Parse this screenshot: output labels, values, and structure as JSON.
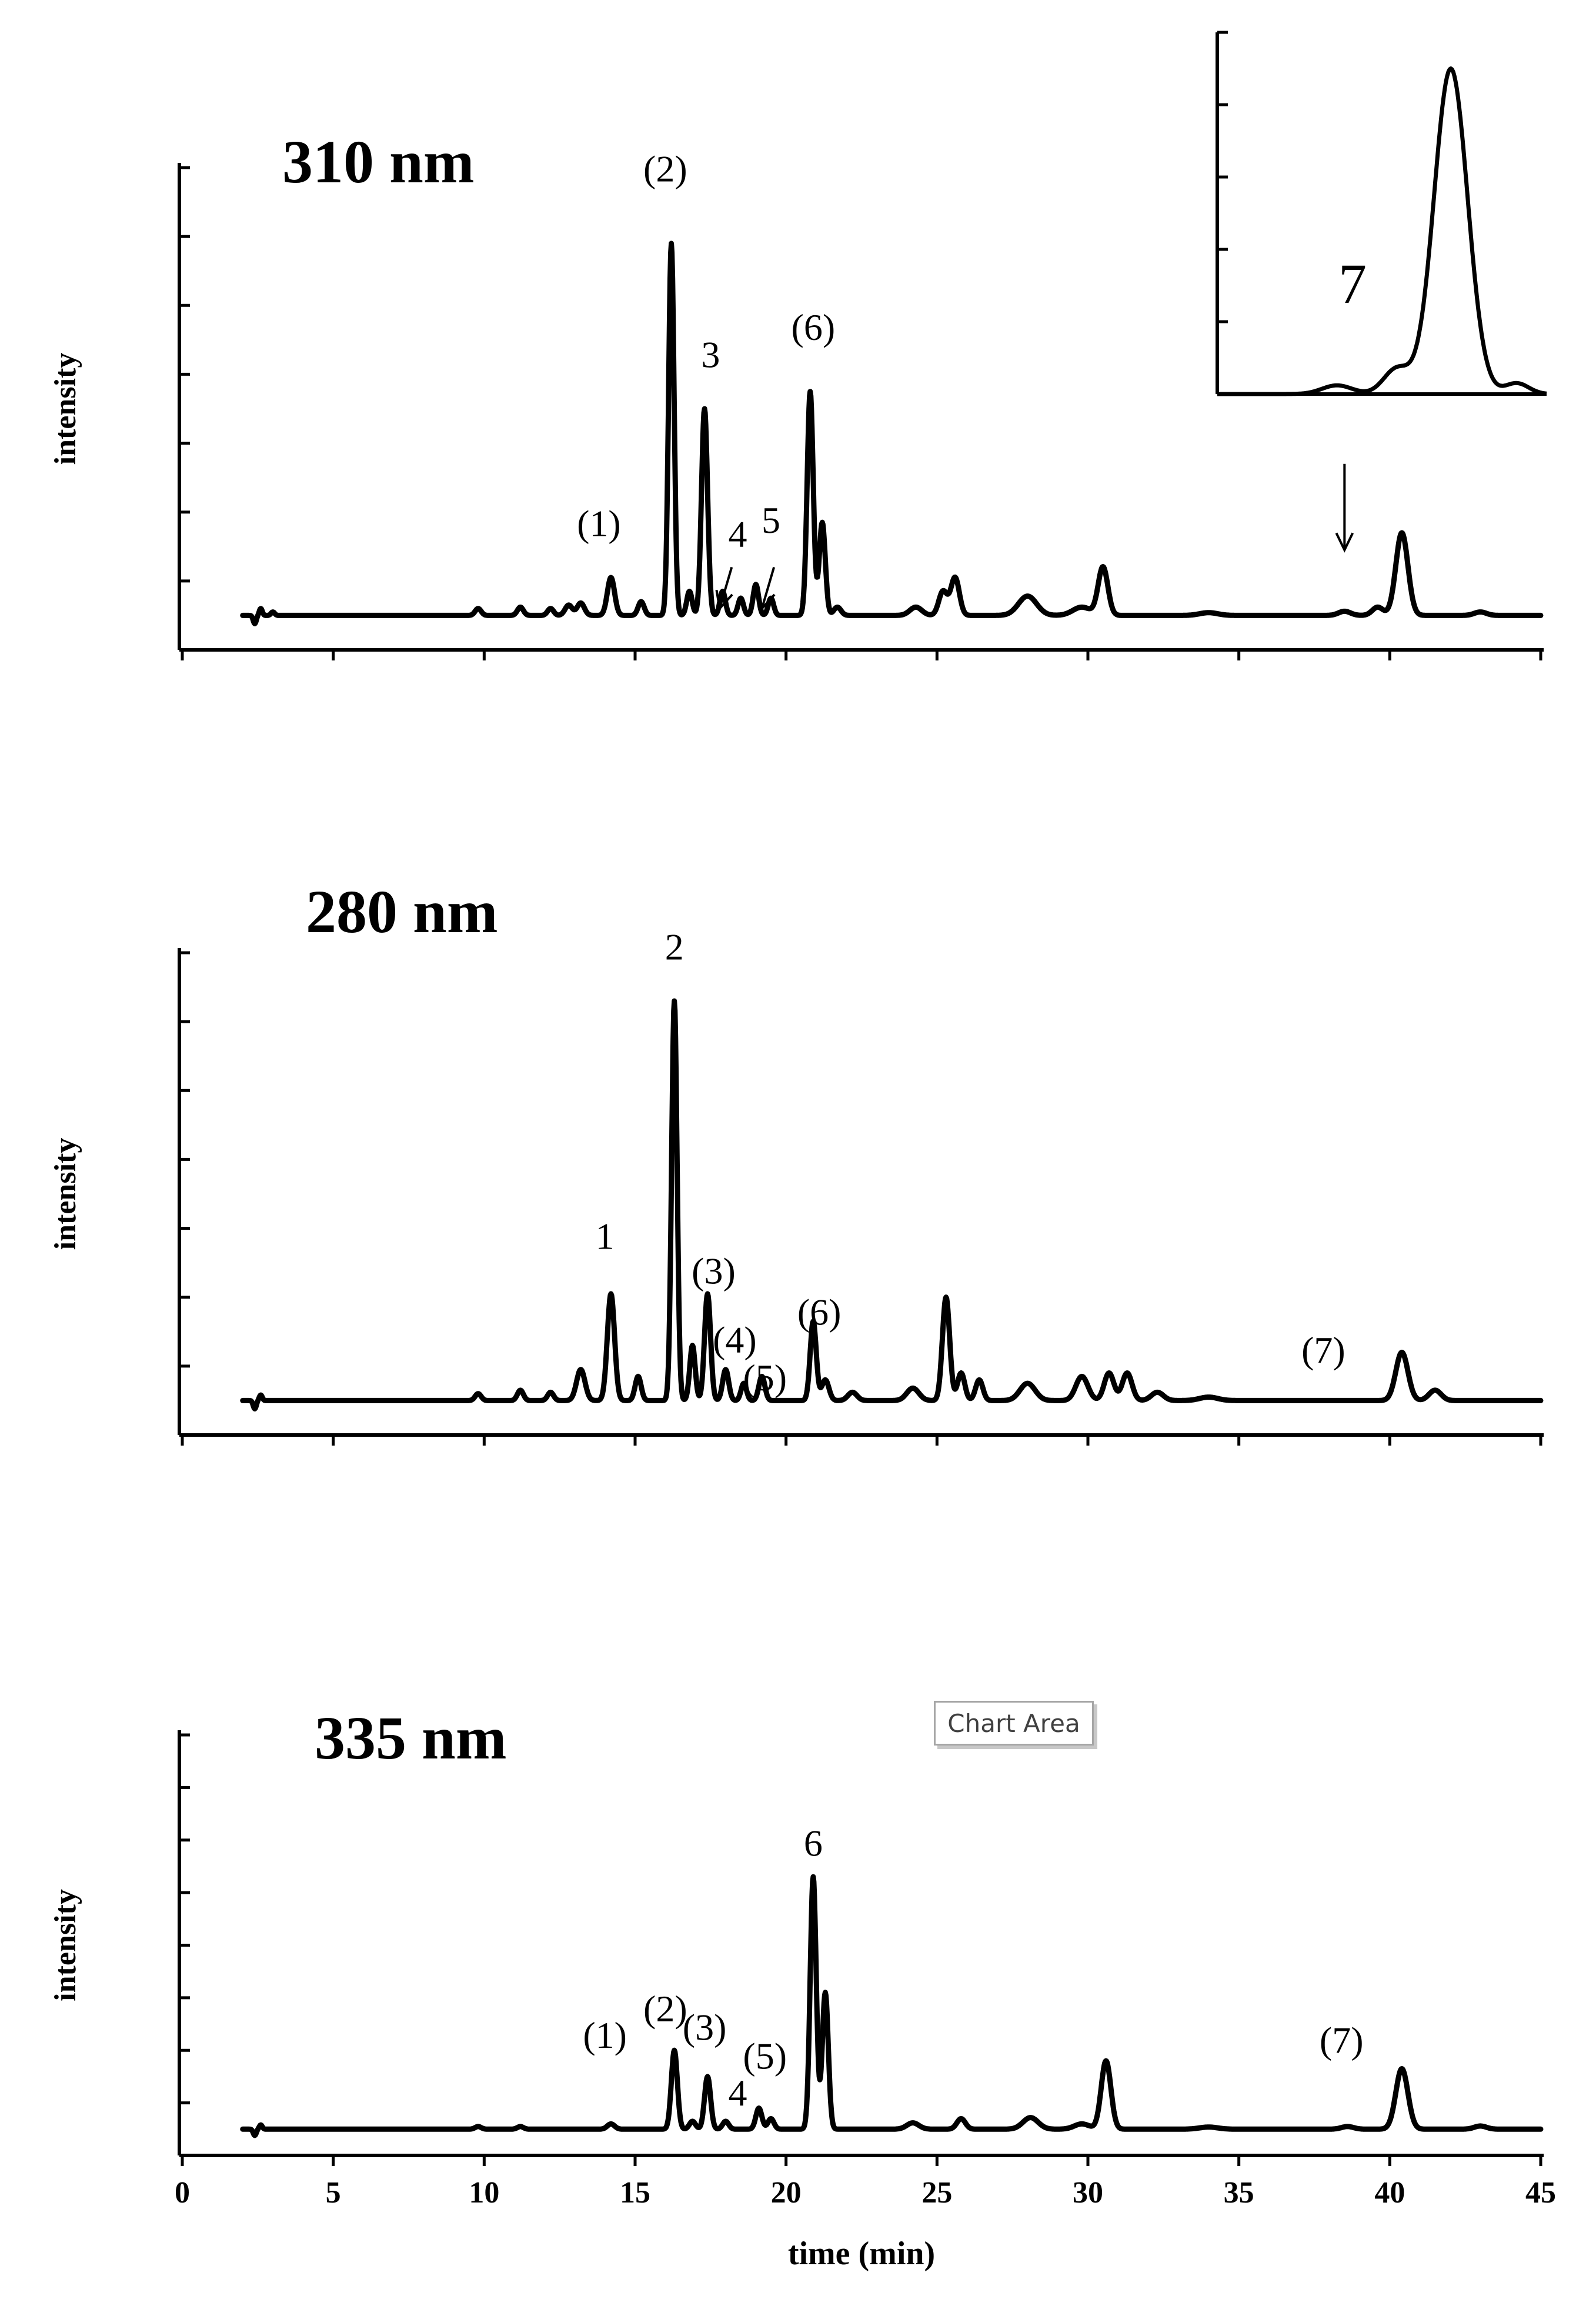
{
  "chart_data": [
    {
      "type": "line",
      "title": "310 nm",
      "xlabel": "",
      "ylabel": "intensity",
      "xlim": [
        0,
        45
      ],
      "ylim": [
        0,
        7
      ],
      "baseline": 0.5,
      "peaks": [
        {
          "t": 2.4,
          "h": -0.12,
          "w": 0.05
        },
        {
          "t": 2.6,
          "h": 0.1,
          "w": 0.05
        },
        {
          "t": 3.0,
          "h": 0.05,
          "w": 0.06
        },
        {
          "t": 9.8,
          "h": 0.1,
          "w": 0.1
        },
        {
          "t": 11.2,
          "h": 0.12,
          "w": 0.1
        },
        {
          "t": 12.2,
          "h": 0.1,
          "w": 0.1
        },
        {
          "t": 12.8,
          "h": 0.15,
          "w": 0.12
        },
        {
          "t": 13.2,
          "h": 0.18,
          "w": 0.12
        },
        {
          "t": 14.2,
          "h": 0.55,
          "w": 0.12
        },
        {
          "t": 15.2,
          "h": 0.2,
          "w": 0.1
        },
        {
          "t": 16.2,
          "h": 5.4,
          "w": 0.09
        },
        {
          "t": 16.8,
          "h": 0.35,
          "w": 0.09
        },
        {
          "t": 17.3,
          "h": 3.0,
          "w": 0.1
        },
        {
          "t": 17.9,
          "h": 0.35,
          "w": 0.09
        },
        {
          "t": 18.5,
          "h": 0.25,
          "w": 0.09
        },
        {
          "t": 19.0,
          "h": 0.45,
          "w": 0.09
        },
        {
          "t": 19.5,
          "h": 0.25,
          "w": 0.09
        },
        {
          "t": 20.8,
          "h": 3.25,
          "w": 0.1
        },
        {
          "t": 21.2,
          "h": 1.35,
          "w": 0.1
        },
        {
          "t": 21.7,
          "h": 0.12,
          "w": 0.12
        },
        {
          "t": 24.3,
          "h": 0.12,
          "w": 0.2
        },
        {
          "t": 25.2,
          "h": 0.35,
          "w": 0.14
        },
        {
          "t": 25.6,
          "h": 0.55,
          "w": 0.14
        },
        {
          "t": 28.0,
          "h": 0.28,
          "w": 0.3
        },
        {
          "t": 29.8,
          "h": 0.12,
          "w": 0.3
        },
        {
          "t": 30.5,
          "h": 0.7,
          "w": 0.16
        },
        {
          "t": 34.0,
          "h": 0.04,
          "w": 0.3
        },
        {
          "t": 38.5,
          "h": 0.06,
          "w": 0.2
        },
        {
          "t": 39.6,
          "h": 0.12,
          "w": 0.18
        },
        {
          "t": 40.4,
          "h": 1.2,
          "w": 0.2
        },
        {
          "t": 43.0,
          "h": 0.05,
          "w": 0.2
        }
      ],
      "annotations": [
        {
          "text": "(1)",
          "t": 13.8,
          "y": 1.65
        },
        {
          "text": "(2)",
          "t": 16.0,
          "y": 6.8
        },
        {
          "text": "3",
          "t": 17.5,
          "y": 4.1
        },
        {
          "text": "4",
          "t": 18.4,
          "y": 1.5
        },
        {
          "text": "5",
          "t": 19.5,
          "y": 1.7
        },
        {
          "text": "(6)",
          "t": 20.9,
          "y": 4.5
        }
      ],
      "arrows": [
        {
          "from": [
            18.2,
            1.2
          ],
          "to": [
            17.8,
            0.6
          ]
        },
        {
          "from": [
            19.6,
            1.2
          ],
          "to": [
            19.2,
            0.6
          ]
        },
        {
          "from": [
            38.5,
            2.7
          ],
          "to": [
            38.5,
            1.45
          ]
        }
      ],
      "inset": {
        "label": "7",
        "peaks": [
          {
            "t": 38.5,
            "h": 0.12,
            "w": 0.25
          },
          {
            "t": 39.5,
            "h": 0.35,
            "w": 0.22
          },
          {
            "t": 40.4,
            "h": 4.5,
            "w": 0.28
          },
          {
            "t": 41.5,
            "h": 0.15,
            "w": 0.2
          }
        ],
        "xlim": [
          36.5,
          42.0
        ],
        "ylim": [
          0,
          5
        ]
      }
    },
    {
      "type": "line",
      "title": "280 nm",
      "xlabel": "",
      "ylabel": "intensity",
      "xlim": [
        0,
        45
      ],
      "ylim": [
        0,
        7
      ],
      "baseline": 0.5,
      "peaks": [
        {
          "t": 2.4,
          "h": -0.12,
          "w": 0.05
        },
        {
          "t": 2.6,
          "h": 0.08,
          "w": 0.05
        },
        {
          "t": 9.8,
          "h": 0.1,
          "w": 0.1
        },
        {
          "t": 11.2,
          "h": 0.15,
          "w": 0.1
        },
        {
          "t": 12.2,
          "h": 0.12,
          "w": 0.1
        },
        {
          "t": 13.2,
          "h": 0.45,
          "w": 0.14
        },
        {
          "t": 14.2,
          "h": 1.55,
          "w": 0.12
        },
        {
          "t": 15.1,
          "h": 0.35,
          "w": 0.1
        },
        {
          "t": 16.3,
          "h": 5.8,
          "w": 0.09
        },
        {
          "t": 16.9,
          "h": 0.8,
          "w": 0.09
        },
        {
          "t": 17.4,
          "h": 1.55,
          "w": 0.1
        },
        {
          "t": 18.0,
          "h": 0.45,
          "w": 0.1
        },
        {
          "t": 18.6,
          "h": 0.25,
          "w": 0.09
        },
        {
          "t": 19.2,
          "h": 0.35,
          "w": 0.1
        },
        {
          "t": 20.9,
          "h": 1.15,
          "w": 0.1
        },
        {
          "t": 21.3,
          "h": 0.3,
          "w": 0.12
        },
        {
          "t": 22.2,
          "h": 0.12,
          "w": 0.15
        },
        {
          "t": 24.2,
          "h": 0.18,
          "w": 0.2
        },
        {
          "t": 25.3,
          "h": 1.5,
          "w": 0.12
        },
        {
          "t": 25.8,
          "h": 0.4,
          "w": 0.12
        },
        {
          "t": 26.4,
          "h": 0.3,
          "w": 0.12
        },
        {
          "t": 28.0,
          "h": 0.25,
          "w": 0.25
        },
        {
          "t": 29.8,
          "h": 0.35,
          "w": 0.2
        },
        {
          "t": 30.7,
          "h": 0.4,
          "w": 0.16
        },
        {
          "t": 31.3,
          "h": 0.4,
          "w": 0.16
        },
        {
          "t": 32.3,
          "h": 0.12,
          "w": 0.2
        },
        {
          "t": 34.0,
          "h": 0.05,
          "w": 0.3
        },
        {
          "t": 40.4,
          "h": 0.7,
          "w": 0.2
        },
        {
          "t": 41.5,
          "h": 0.15,
          "w": 0.2
        }
      ],
      "annotations": [
        {
          "text": "1",
          "t": 14.0,
          "y": 2.7
        },
        {
          "text": "2",
          "t": 16.3,
          "y": 6.9
        },
        {
          "text": "(3)",
          "t": 17.6,
          "y": 2.2
        },
        {
          "text": "(4)",
          "t": 18.3,
          "y": 1.2
        },
        {
          "text": "(5)",
          "t": 19.3,
          "y": 0.65
        },
        {
          "text": "(6)",
          "t": 21.1,
          "y": 1.6
        },
        {
          "text": "(7)",
          "t": 37.8,
          "y": 1.05
        }
      ]
    },
    {
      "type": "line",
      "title": "335 nm",
      "xlabel": "time (min)",
      "ylabel": "intensity",
      "xlim": [
        0,
        45
      ],
      "ylim": [
        0,
        8
      ],
      "baseline": 0.5,
      "xticks": [
        0,
        5,
        10,
        15,
        20,
        25,
        30,
        35,
        40,
        45
      ],
      "peaks": [
        {
          "t": 2.4,
          "h": -0.12,
          "w": 0.05
        },
        {
          "t": 2.6,
          "h": 0.08,
          "w": 0.05
        },
        {
          "t": 9.8,
          "h": 0.05,
          "w": 0.1
        },
        {
          "t": 11.2,
          "h": 0.05,
          "w": 0.1
        },
        {
          "t": 14.2,
          "h": 0.1,
          "w": 0.12
        },
        {
          "t": 16.3,
          "h": 1.5,
          "w": 0.1
        },
        {
          "t": 16.9,
          "h": 0.15,
          "w": 0.1
        },
        {
          "t": 17.4,
          "h": 1.0,
          "w": 0.1
        },
        {
          "t": 18.0,
          "h": 0.15,
          "w": 0.1
        },
        {
          "t": 19.1,
          "h": 0.4,
          "w": 0.1
        },
        {
          "t": 19.5,
          "h": 0.2,
          "w": 0.1
        },
        {
          "t": 20.9,
          "h": 4.8,
          "w": 0.1
        },
        {
          "t": 21.3,
          "h": 2.6,
          "w": 0.1
        },
        {
          "t": 24.2,
          "h": 0.12,
          "w": 0.2
        },
        {
          "t": 25.8,
          "h": 0.2,
          "w": 0.14
        },
        {
          "t": 28.1,
          "h": 0.22,
          "w": 0.25
        },
        {
          "t": 29.8,
          "h": 0.1,
          "w": 0.25
        },
        {
          "t": 30.6,
          "h": 1.3,
          "w": 0.16
        },
        {
          "t": 34.0,
          "h": 0.04,
          "w": 0.3
        },
        {
          "t": 38.6,
          "h": 0.05,
          "w": 0.2
        },
        {
          "t": 40.4,
          "h": 1.15,
          "w": 0.2
        },
        {
          "t": 43.0,
          "h": 0.06,
          "w": 0.2
        }
      ],
      "annotations": [
        {
          "text": "(1)",
          "t": 14.0,
          "y": 2.05
        },
        {
          "text": "(2)",
          "t": 16.0,
          "y": 2.55
        },
        {
          "text": "(3)",
          "t": 17.3,
          "y": 2.2
        },
        {
          "text": "4",
          "t": 18.4,
          "y": 0.95
        },
        {
          "text": "(5)",
          "t": 19.3,
          "y": 1.65
        },
        {
          "text": "6",
          "t": 20.9,
          "y": 5.7
        },
        {
          "text": "(7)",
          "t": 38.4,
          "y": 1.95
        }
      ]
    }
  ],
  "ui": {
    "chart_area_tooltip": "Chart Area"
  }
}
